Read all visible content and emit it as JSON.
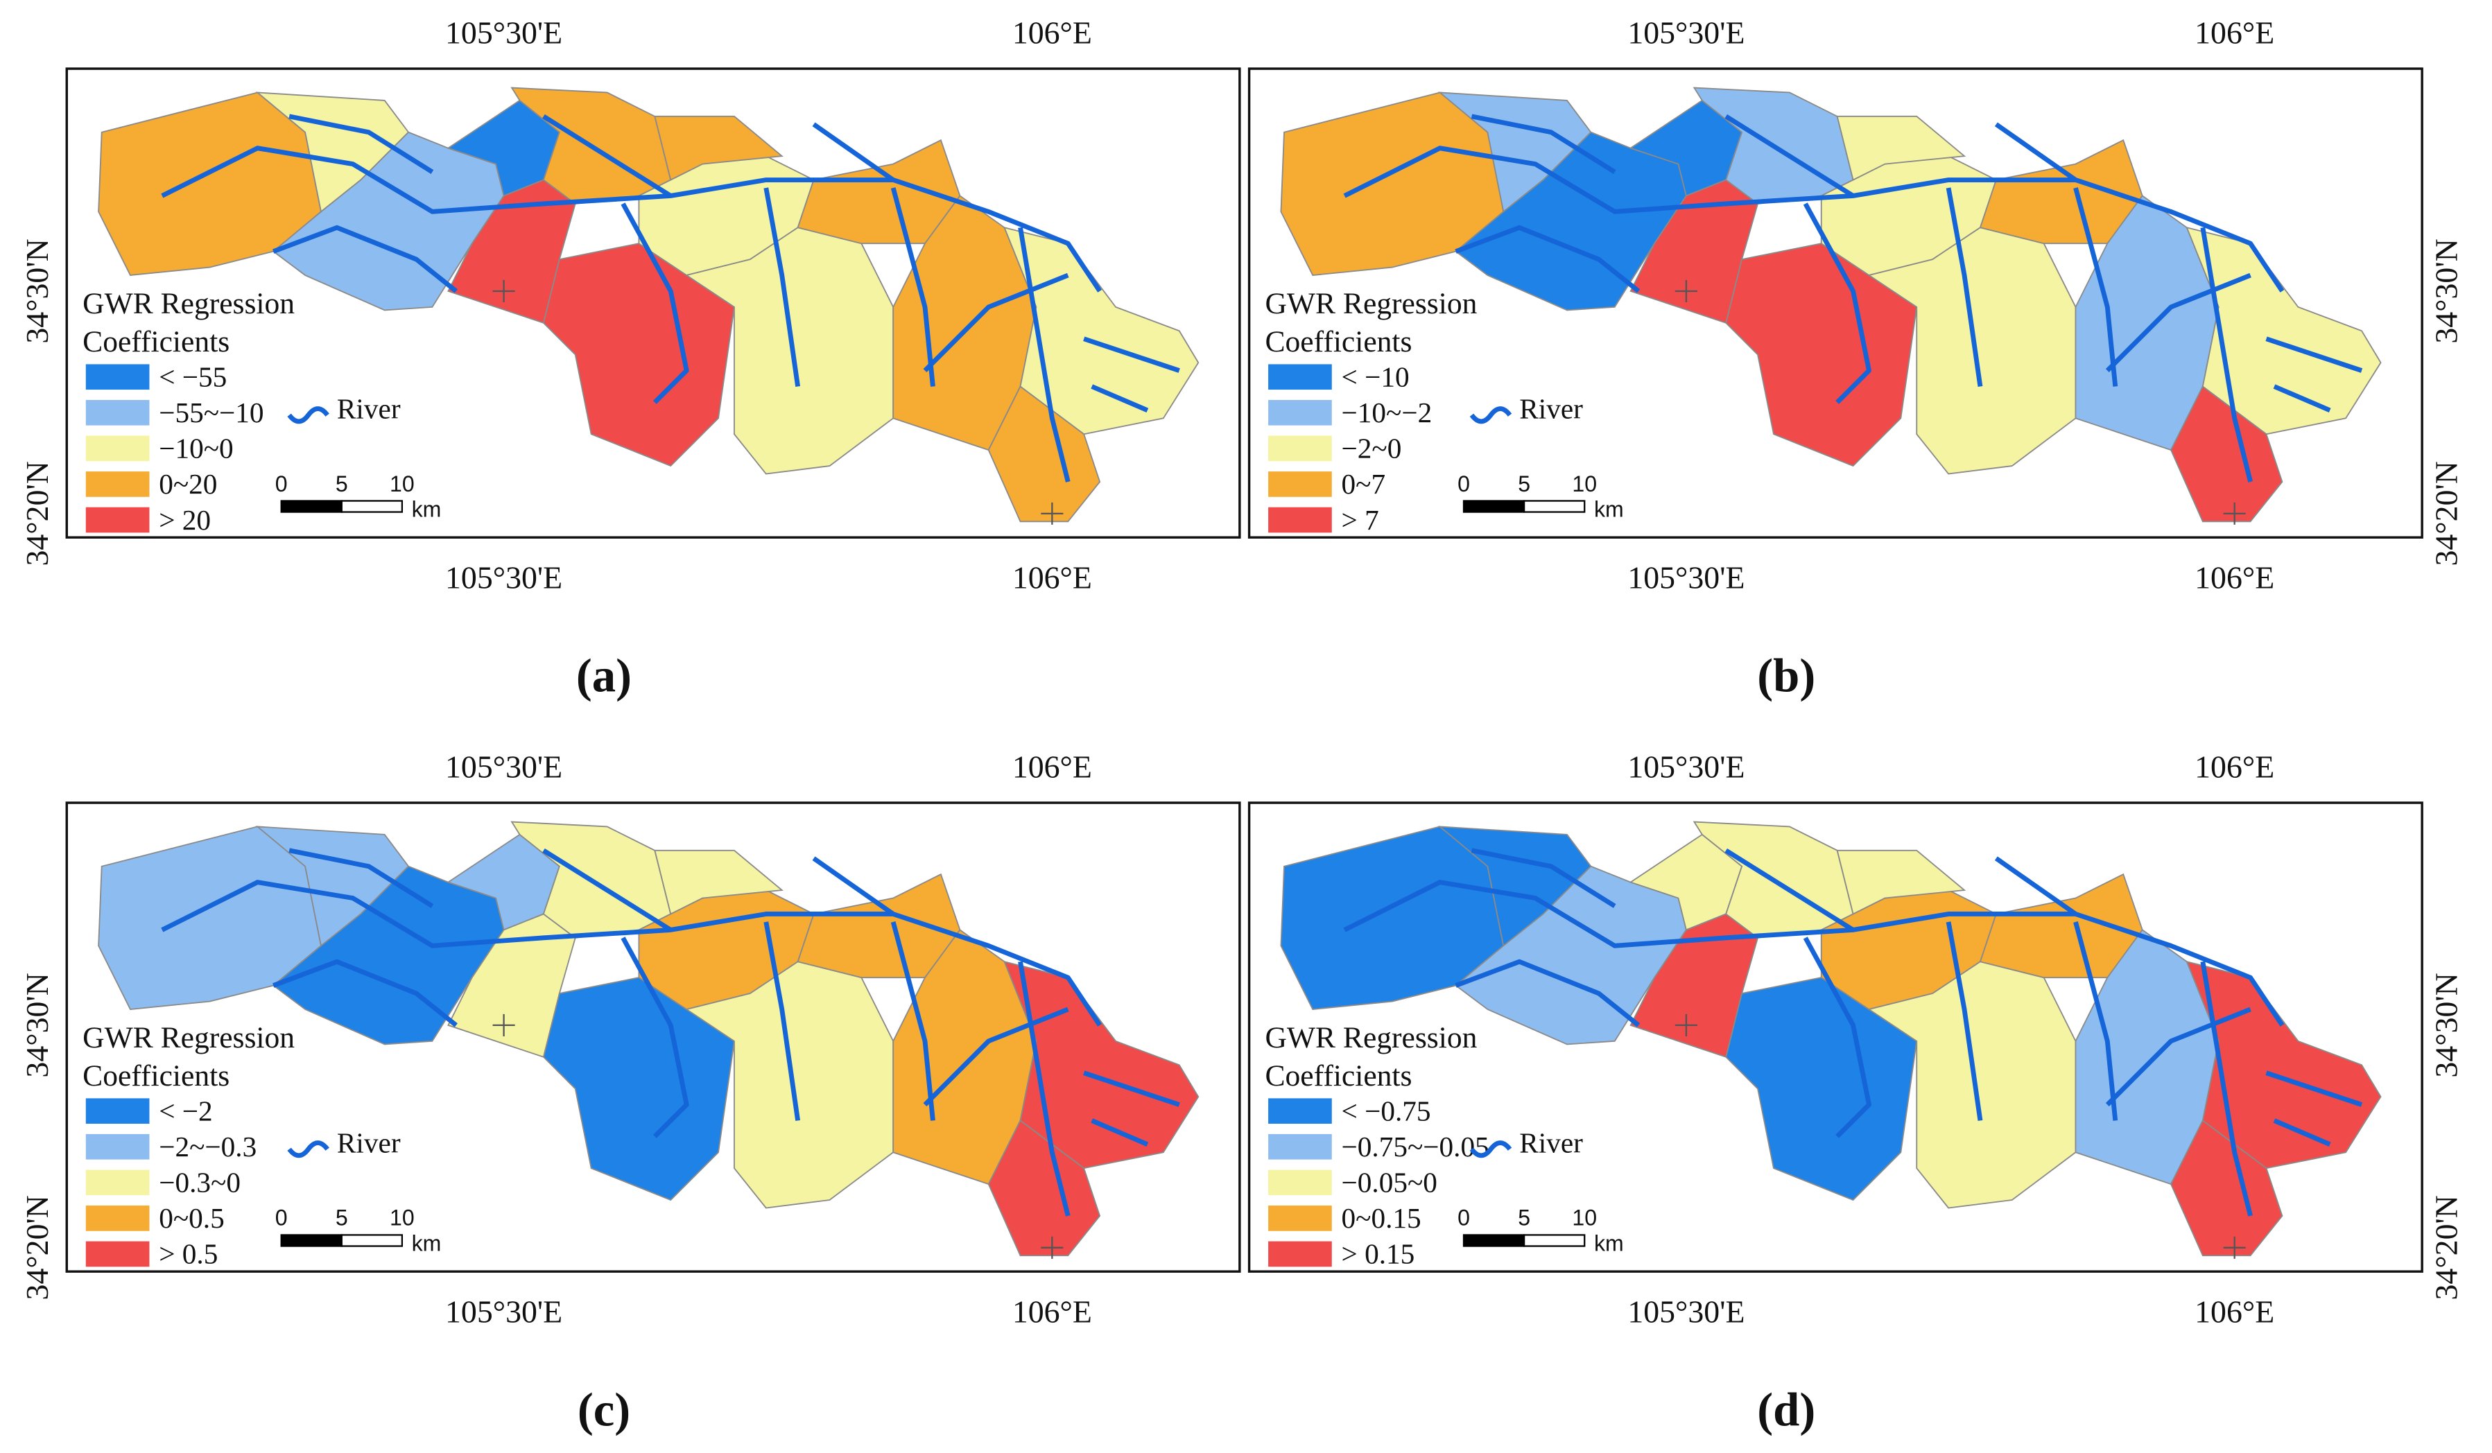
{
  "panels": [
    {
      "label": "(a)",
      "legend": {
        "title_lines": [
          "GWR Regression",
          "Coefficients"
        ],
        "classes": [
          "< −55",
          "−55~−10",
          "−10~0",
          "0~20",
          "> 20"
        ]
      }
    },
    {
      "label": "(b)",
      "legend": {
        "title_lines": [
          "GWR Regression",
          "Coefficients"
        ],
        "classes": [
          "< −10",
          "−10~−2",
          "−2~0",
          "0~7",
          "> 7"
        ]
      }
    },
    {
      "label": "(c)",
      "legend": {
        "title_lines": [
          "GWR Regression",
          "Coefficients"
        ],
        "classes": [
          "< −2",
          "−2~−0.3",
          "−0.3~0",
          "0~0.5",
          "> 0.5"
        ]
      }
    },
    {
      "label": "(d)",
      "legend": {
        "title_lines": [
          "GWR Regression",
          "Coefficients"
        ],
        "classes": [
          "< −0.75",
          "−0.75~−0.05",
          "−0.05~0",
          "0~0.15",
          "> 0.15"
        ]
      }
    }
  ],
  "class_colors": [
    "#1e82e6",
    "#8dbdf0",
    "#f4f4a2",
    "#f6ab32",
    "#f04a4a"
  ],
  "lon_labels": [
    "105°30'E",
    "106°E"
  ],
  "lat_labels": [
    "34°30'N",
    "34°20'N"
  ],
  "river_label": "River",
  "scale": {
    "ticks": [
      "0",
      "5",
      "10"
    ],
    "unit": "km"
  }
}
